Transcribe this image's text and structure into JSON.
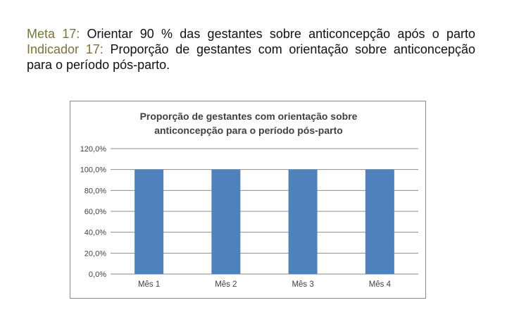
{
  "header": {
    "meta_label": "Meta 17:",
    "meta_text": "Orientar 90 % das gestantes sobre anticoncepção após o parto",
    "indicator_label": "Indicador 17:",
    "indicator_text": "Proporção de gestantes com orientação sobre anticoncepção para o período pós-parto."
  },
  "chart_data": {
    "type": "bar",
    "title_lines": [
      "Proporção de gestantes com orientação sobre",
      "anticoncepção para o período pós-parto"
    ],
    "categories": [
      "Mês 1",
      "Mês 2",
      "Mês 3",
      "Mês 4"
    ],
    "values": [
      100,
      100,
      100,
      100
    ],
    "yticks": [
      "0,0%",
      "20,0%",
      "40,0%",
      "60,0%",
      "80,0%",
      "100,0%",
      "120,0%"
    ],
    "ylim": [
      0,
      120
    ],
    "grid": true,
    "legend": "none",
    "bar_color": "#4f81bd",
    "xlabel": "",
    "ylabel": ""
  }
}
